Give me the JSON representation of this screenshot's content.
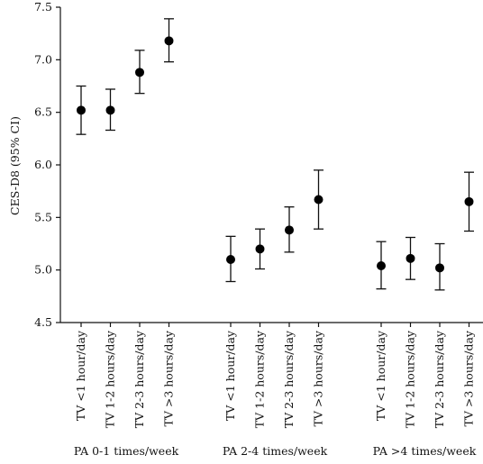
{
  "chart_data": {
    "type": "scatter",
    "ylabel": "CES-D8 (95% CI)",
    "xlabel": "",
    "ylim": [
      4.5,
      7.5
    ],
    "yticks": [
      4.5,
      5.0,
      5.5,
      6.0,
      6.5,
      7.0,
      7.5
    ],
    "ytick_labels": [
      "4.5",
      "5.0",
      "5.5",
      "6.0",
      "6.5",
      "7.0",
      "7.5"
    ],
    "grid": false,
    "groups": [
      {
        "label": "PA 0-1 times/week",
        "categories": [
          "TV <1 hour/day",
          "TV 1-2 hours/day",
          "TV 2-3 hours/day",
          "TV >3 hours/day"
        ],
        "values": [
          6.52,
          6.52,
          6.88,
          7.18
        ],
        "ci_low": [
          6.29,
          6.33,
          6.68,
          6.98
        ],
        "ci_high": [
          6.75,
          6.72,
          7.09,
          7.39
        ]
      },
      {
        "label": "PA 2-4 times/week",
        "categories": [
          "TV <1 hour/day",
          "TV 1-2 hours/day",
          "TV 2-3 hours/day",
          "TV >3 hours/day"
        ],
        "values": [
          5.1,
          5.2,
          5.38,
          5.67
        ],
        "ci_low": [
          4.89,
          5.01,
          5.17,
          5.39
        ],
        "ci_high": [
          5.32,
          5.39,
          5.6,
          5.95
        ]
      },
      {
        "label": "PA >4 times/week",
        "categories": [
          "TV <1 hour/day",
          "TV 1-2 hours/day",
          "TV 2-3 hours/day",
          "TV >3 hours/day"
        ],
        "values": [
          5.04,
          5.11,
          5.02,
          5.65
        ],
        "ci_low": [
          4.82,
          4.91,
          4.81,
          5.37
        ],
        "ci_high": [
          5.27,
          5.31,
          5.25,
          5.93
        ]
      }
    ]
  }
}
